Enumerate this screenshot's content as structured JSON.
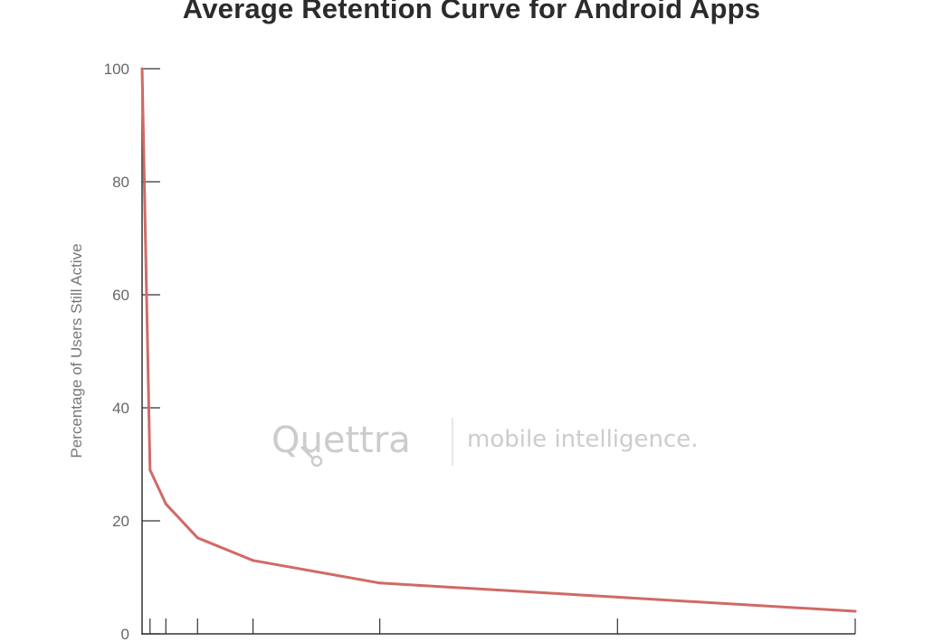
{
  "chart_data": {
    "type": "line",
    "title": "Average Retention Curve for Android Apps",
    "xlabel": "",
    "ylabel": "Percentage of Users Still Active",
    "ylim": [
      0,
      100
    ],
    "xlim": [
      0,
      90
    ],
    "y_ticks": [
      "0",
      "20",
      "40",
      "60",
      "80",
      "100"
    ],
    "x_tick_values": [
      1,
      3,
      7,
      14,
      30,
      60,
      90
    ],
    "grid": false,
    "series": [
      {
        "color": "#d06a66",
        "x": [
          0,
          1,
          3,
          7,
          14,
          30,
          60,
          90
        ],
        "y": [
          100,
          29,
          23,
          17,
          13,
          9,
          6.5,
          4
        ]
      }
    ]
  },
  "watermark": {
    "brand": "Quettra",
    "tagline": "mobile intelligence."
  }
}
